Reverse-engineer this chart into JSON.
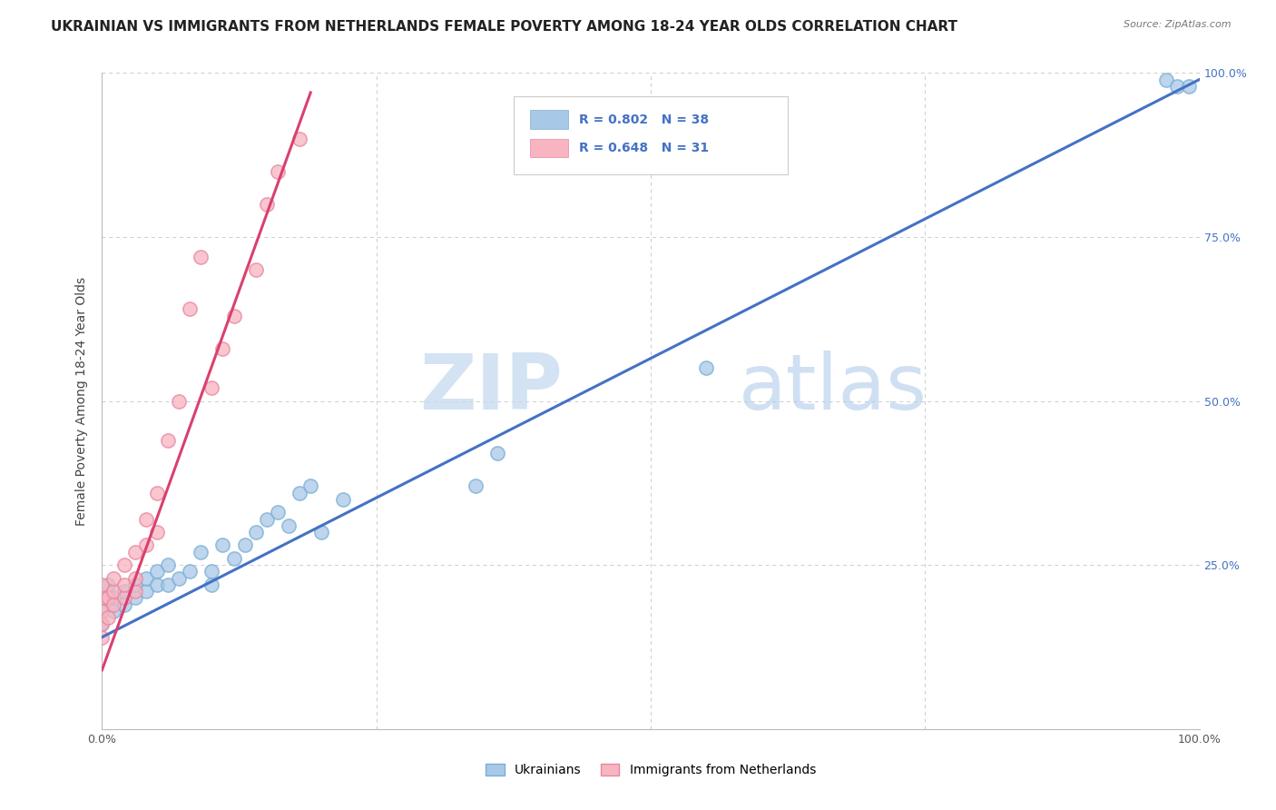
{
  "title": "UKRAINIAN VS IMMIGRANTS FROM NETHERLANDS FEMALE POVERTY AMONG 18-24 YEAR OLDS CORRELATION CHART",
  "source": "Source: ZipAtlas.com",
  "ylabel": "Female Poverty Among 18-24 Year Olds",
  "xlim": [
    0,
    1.0
  ],
  "ylim": [
    0,
    1.0
  ],
  "xticks": [
    0.0,
    0.25,
    0.5,
    0.75,
    1.0
  ],
  "xtick_labels": [
    "0.0%",
    "",
    "",
    "",
    "100.0%"
  ],
  "yticks": [
    0.0,
    0.25,
    0.5,
    0.75,
    1.0
  ],
  "ytick_labels_left": [
    "",
    "",
    "",
    "",
    ""
  ],
  "ytick_labels_right": [
    "",
    "25.0%",
    "50.0%",
    "75.0%",
    "100.0%"
  ],
  "blue_R": 0.802,
  "blue_N": 38,
  "pink_R": 0.648,
  "pink_N": 31,
  "blue_scatter_x": [
    0.0,
    0.0,
    0.0,
    0.005,
    0.01,
    0.01,
    0.02,
    0.02,
    0.03,
    0.03,
    0.04,
    0.04,
    0.05,
    0.05,
    0.06,
    0.06,
    0.07,
    0.08,
    0.09,
    0.1,
    0.1,
    0.11,
    0.12,
    0.13,
    0.14,
    0.15,
    0.16,
    0.17,
    0.18,
    0.19,
    0.2,
    0.22,
    0.34,
    0.36,
    0.55,
    0.97,
    0.98,
    0.99
  ],
  "blue_scatter_y": [
    0.16,
    0.18,
    0.2,
    0.22,
    0.18,
    0.2,
    0.19,
    0.21,
    0.2,
    0.22,
    0.21,
    0.23,
    0.22,
    0.24,
    0.22,
    0.25,
    0.23,
    0.24,
    0.27,
    0.22,
    0.24,
    0.28,
    0.26,
    0.28,
    0.3,
    0.32,
    0.33,
    0.31,
    0.36,
    0.37,
    0.3,
    0.35,
    0.37,
    0.42,
    0.55,
    0.99,
    0.98,
    0.98
  ],
  "pink_scatter_x": [
    0.0,
    0.0,
    0.0,
    0.0,
    0.0,
    0.005,
    0.005,
    0.01,
    0.01,
    0.01,
    0.02,
    0.02,
    0.02,
    0.03,
    0.03,
    0.03,
    0.04,
    0.04,
    0.05,
    0.05,
    0.06,
    0.07,
    0.08,
    0.09,
    0.1,
    0.11,
    0.12,
    0.14,
    0.15,
    0.16,
    0.18
  ],
  "pink_scatter_y": [
    0.14,
    0.16,
    0.18,
    0.2,
    0.22,
    0.17,
    0.2,
    0.19,
    0.21,
    0.23,
    0.2,
    0.22,
    0.25,
    0.21,
    0.23,
    0.27,
    0.28,
    0.32,
    0.3,
    0.36,
    0.44,
    0.5,
    0.64,
    0.72,
    0.52,
    0.58,
    0.63,
    0.7,
    0.8,
    0.85,
    0.9
  ],
  "blue_line_x": [
    0.0,
    1.0
  ],
  "blue_line_y": [
    0.14,
    0.99
  ],
  "pink_line_x": [
    0.0,
    0.19
  ],
  "pink_line_y": [
    0.09,
    0.97
  ],
  "watermark_ZIP": "ZIP",
  "watermark_atlas": "atlas",
  "background_color": "#ffffff",
  "blue_color": "#a8c8e8",
  "blue_edge_color": "#7bafd4",
  "blue_line_color": "#4472c4",
  "pink_color": "#f8b4c0",
  "pink_edge_color": "#e888a0",
  "pink_line_color": "#d94070",
  "grid_color": "#cccccc",
  "title_fontsize": 11,
  "label_fontsize": 10,
  "tick_fontsize": 9,
  "legend_R_color": "#4472c4",
  "legend_N_color": "#4472c4"
}
